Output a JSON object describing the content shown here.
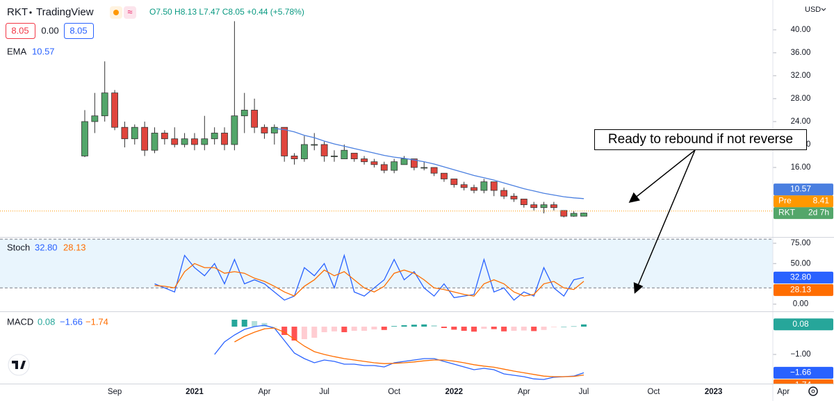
{
  "ui": {
    "symbol": "RKT",
    "source": "TradingView",
    "ohlc": "O7.50 H8.13 L7.47 C8.05 +0.44 (+5.78%)",
    "bid": "8.05",
    "spread": "0.00",
    "ask": "8.05",
    "currency": "USD",
    "countdown": "2d 7h"
  },
  "chart_data": [
    {
      "type": "candlestick",
      "annotation": "Ready to rebound if not reverse",
      "up_color": "#53a66a",
      "down_color": "#e0453d",
      "categories": [
        null,
        null,
        null,
        "Sep",
        null,
        null,
        null,
        null,
        null,
        null,
        null,
        "2021",
        null,
        null,
        null,
        null,
        null,
        null,
        "Apr",
        null,
        null,
        null,
        null,
        null,
        "Jul",
        null,
        null,
        null,
        null,
        null,
        null,
        "Oct",
        null,
        null,
        null,
        null,
        null,
        "2022",
        null,
        null,
        null,
        null,
        null,
        null,
        "Apr",
        null,
        null,
        null,
        null,
        null,
        "Jul",
        null,
        null,
        null,
        null,
        null,
        null,
        "Oct",
        null,
        null,
        null,
        null,
        null,
        "2023",
        null,
        null,
        null,
        null,
        null,
        null,
        "Apr"
      ],
      "open": [
        18,
        24,
        25,
        29,
        23,
        21,
        23,
        19,
        22,
        21,
        20,
        21,
        20,
        21,
        22,
        20,
        25,
        26,
        23,
        22,
        23,
        18,
        17.5,
        20,
        20,
        18,
        17.5,
        18.5,
        17.5,
        17,
        16.5,
        15.5,
        16.5,
        17.5,
        16,
        16,
        15,
        14,
        13,
        12.5,
        12,
        13.5,
        12,
        11,
        10.5,
        9.5,
        9,
        9.5,
        8.5,
        7.5,
        7.5,
        null,
        null,
        null,
        null,
        null,
        null,
        null,
        null,
        null,
        null,
        null,
        null,
        null,
        null,
        null,
        null,
        null,
        null,
        null,
        null
      ],
      "high": [
        26,
        29,
        34.5,
        29.5,
        24,
        23.5,
        24,
        23,
        22.5,
        23,
        22,
        22,
        25,
        23,
        23,
        41.5,
        29,
        28,
        23.5,
        23.5,
        23,
        18.5,
        21.5,
        22,
        20.5,
        19,
        20,
        18.5,
        18,
        17.5,
        17,
        17.5,
        18,
        17.5,
        17,
        16,
        15,
        14,
        13.5,
        13,
        14,
        13.5,
        12.5,
        11.5,
        10.5,
        10,
        10,
        10,
        8.5,
        8.4,
        8.13,
        null,
        null,
        null,
        null,
        null,
        null,
        null,
        null,
        null,
        null,
        null,
        null,
        null,
        null,
        null,
        null,
        null,
        null,
        null,
        null
      ],
      "low": [
        17.8,
        22,
        24,
        22.5,
        19.5,
        20,
        18,
        18.5,
        20,
        19.5,
        19.5,
        19,
        19,
        20,
        19,
        19,
        22,
        22,
        21,
        20,
        17,
        16.5,
        17,
        19,
        17,
        17,
        17.5,
        17,
        16.5,
        16,
        15,
        15,
        16.5,
        15.5,
        15.5,
        14.5,
        13.5,
        12.5,
        12,
        11.5,
        11.5,
        11,
        10.5,
        10,
        9,
        8.5,
        8,
        8.5,
        7.3,
        7.4,
        7.47,
        null,
        null,
        null,
        null,
        null,
        null,
        null,
        null,
        null,
        null,
        null,
        null,
        null,
        null,
        null,
        null,
        null,
        null,
        null,
        null
      ],
      "close": [
        24,
        25,
        29,
        23,
        21,
        23,
        19,
        22,
        21,
        20,
        21,
        20,
        21,
        22,
        20,
        25,
        26,
        23,
        22,
        23,
        18,
        17.5,
        20,
        20,
        18,
        18,
        19,
        17.5,
        17,
        16.5,
        15.5,
        17,
        17.5,
        16,
        16,
        15,
        14,
        13,
        12.5,
        12,
        13.5,
        12,
        11,
        10.5,
        9.5,
        9,
        9.5,
        9,
        7.5,
        8,
        8.05,
        null,
        null,
        null,
        null,
        null,
        null,
        null,
        null,
        null,
        null,
        null,
        null,
        null,
        null,
        null,
        null,
        null,
        null,
        null,
        null
      ],
      "series": [
        {
          "name": "EMA",
          "color": "#4a7fe0",
          "values": [
            null,
            null,
            null,
            null,
            null,
            null,
            null,
            null,
            null,
            null,
            null,
            null,
            null,
            null,
            null,
            null,
            null,
            null,
            null,
            22.8,
            22.6,
            22.2,
            21.6,
            21.2,
            20.6,
            20.1,
            19.7,
            19.3,
            18.9,
            18.5,
            18.1,
            17.8,
            17.6,
            17.3,
            17,
            16.6,
            16.1,
            15.6,
            15.1,
            14.6,
            14.2,
            13.8,
            13.3,
            12.8,
            12.3,
            11.9,
            11.5,
            11.2,
            10.9,
            10.7,
            10.57,
            null,
            null,
            null,
            null,
            null,
            null,
            null,
            null,
            null,
            null,
            null,
            null,
            null,
            null,
            null,
            null,
            null,
            null,
            null,
            null
          ]
        }
      ],
      "pre": {
        "label": "Pre",
        "value": 8.41,
        "color": "#ff9800"
      },
      "ylim": [
        4,
        45.2
      ],
      "yticks": [
        {
          "value": 16,
          "label": "16.00"
        },
        {
          "value": 20,
          "label": "20.00"
        },
        {
          "value": 24,
          "label": "24.00"
        },
        {
          "value": 28,
          "label": "28.00"
        },
        {
          "value": 32,
          "label": "32.00"
        },
        {
          "value": 36,
          "label": "36.00"
        },
        {
          "value": 40,
          "label": "40.00"
        }
      ]
    },
    {
      "type": "line",
      "title": "Stoch",
      "legend_values": [
        "32.80",
        "28.13"
      ],
      "band": [
        20,
        80
      ],
      "band_color": "#e3f2fd",
      "series": [
        {
          "color": "#2962ff",
          "values": [
            null,
            null,
            null,
            null,
            null,
            null,
            null,
            25,
            20,
            15,
            60,
            45,
            35,
            50,
            25,
            55,
            25,
            30,
            25,
            15,
            5,
            10,
            45,
            35,
            50,
            20,
            60,
            15,
            10,
            20,
            30,
            55,
            30,
            40,
            20,
            10,
            25,
            8,
            10,
            12,
            55,
            15,
            20,
            5,
            15,
            10,
            45,
            20,
            10,
            30,
            32.8,
            null,
            null,
            null,
            null,
            null,
            null,
            null,
            null,
            null,
            null,
            null,
            null,
            null,
            null,
            null,
            null,
            null,
            null,
            null,
            null
          ]
        },
        {
          "color": "#ff6d00",
          "values": [
            null,
            null,
            null,
            null,
            null,
            null,
            null,
            23,
            22,
            20,
            40,
            50,
            45,
            45,
            38,
            40,
            38,
            32,
            28,
            22,
            15,
            10,
            22,
            30,
            42,
            35,
            40,
            30,
            20,
            15,
            22,
            38,
            42,
            38,
            30,
            20,
            18,
            15,
            12,
            10,
            25,
            30,
            25,
            15,
            10,
            12,
            25,
            28,
            20,
            18,
            28.13,
            null,
            null,
            null,
            null,
            null,
            null,
            null,
            null,
            null,
            null,
            null,
            null,
            null,
            null,
            null,
            null,
            null,
            null,
            null,
            null
          ]
        }
      ],
      "ylim": [
        -8,
        81
      ],
      "yticks": [
        {
          "value": 0,
          "label": "0.00"
        },
        {
          "value": 50,
          "label": "50.00"
        },
        {
          "value": 75,
          "label": "75.00"
        }
      ]
    },
    {
      "type": "line",
      "title": "MACD",
      "legend_values": [
        "0.08",
        "−1.66",
        "−1.74"
      ],
      "histogram": {
        "colors": [
          "#26a69a",
          "#b2dfdb",
          "#ffcdd2",
          "#ff5252"
        ],
        "values": [
          null,
          null,
          null,
          null,
          null,
          null,
          null,
          null,
          null,
          null,
          null,
          null,
          null,
          null,
          null,
          0.25,
          0.25,
          0.2,
          0.13,
          0,
          -0.3,
          -0.5,
          -0.45,
          -0.4,
          -0.2,
          -0.17,
          -0.2,
          -0.15,
          -0.15,
          -0.1,
          -0.12,
          0.02,
          0.05,
          0.07,
          0.08,
          0.05,
          -0.05,
          -0.11,
          -0.15,
          -0.18,
          -0.08,
          -0.09,
          -0.17,
          -0.15,
          -0.14,
          -0.16,
          -0.12,
          -0.02,
          0,
          0.01,
          0.08,
          null,
          null,
          null,
          null,
          null,
          null,
          null,
          null,
          null,
          null,
          null,
          null,
          null,
          null,
          null,
          null,
          null,
          null,
          null,
          null
        ]
      },
      "series": [
        {
          "color": "#2962ff",
          "values": [
            null,
            null,
            null,
            null,
            null,
            null,
            null,
            null,
            null,
            null,
            null,
            null,
            null,
            -1.0,
            -0.55,
            -0.3,
            -0.1,
            0.0,
            0.05,
            -0.05,
            -0.5,
            -0.95,
            -1.15,
            -1.3,
            -1.2,
            -1.25,
            -1.35,
            -1.35,
            -1.4,
            -1.4,
            -1.45,
            -1.3,
            -1.25,
            -1.2,
            -1.15,
            -1.15,
            -1.25,
            -1.35,
            -1.45,
            -1.55,
            -1.5,
            -1.55,
            -1.7,
            -1.75,
            -1.8,
            -1.88,
            -1.9,
            -1.82,
            -1.8,
            -1.78,
            -1.66,
            null,
            null,
            null,
            null,
            null,
            null,
            null,
            null,
            null,
            null,
            null,
            null,
            null,
            null,
            null,
            null,
            null,
            null,
            null,
            null
          ]
        },
        {
          "color": "#ff6d00",
          "values": [
            null,
            null,
            null,
            null,
            null,
            null,
            null,
            null,
            null,
            null,
            null,
            null,
            null,
            null,
            null,
            -0.55,
            -0.35,
            -0.2,
            -0.08,
            -0.05,
            -0.2,
            -0.45,
            -0.7,
            -0.9,
            -1.0,
            -1.08,
            -1.15,
            -1.2,
            -1.25,
            -1.3,
            -1.33,
            -1.32,
            -1.3,
            -1.27,
            -1.23,
            -1.2,
            -1.2,
            -1.24,
            -1.3,
            -1.37,
            -1.42,
            -1.46,
            -1.53,
            -1.6,
            -1.66,
            -1.72,
            -1.78,
            -1.8,
            -1.8,
            -1.79,
            -1.74,
            null,
            null,
            null,
            null,
            null,
            null,
            null,
            null,
            null,
            null,
            null,
            null,
            null,
            null,
            null,
            null,
            null,
            null,
            null,
            null
          ]
        }
      ],
      "ylim": [
        -2,
        0.5
      ],
      "yticks": [
        {
          "value": -1,
          "label": "−1.00"
        }
      ]
    }
  ]
}
